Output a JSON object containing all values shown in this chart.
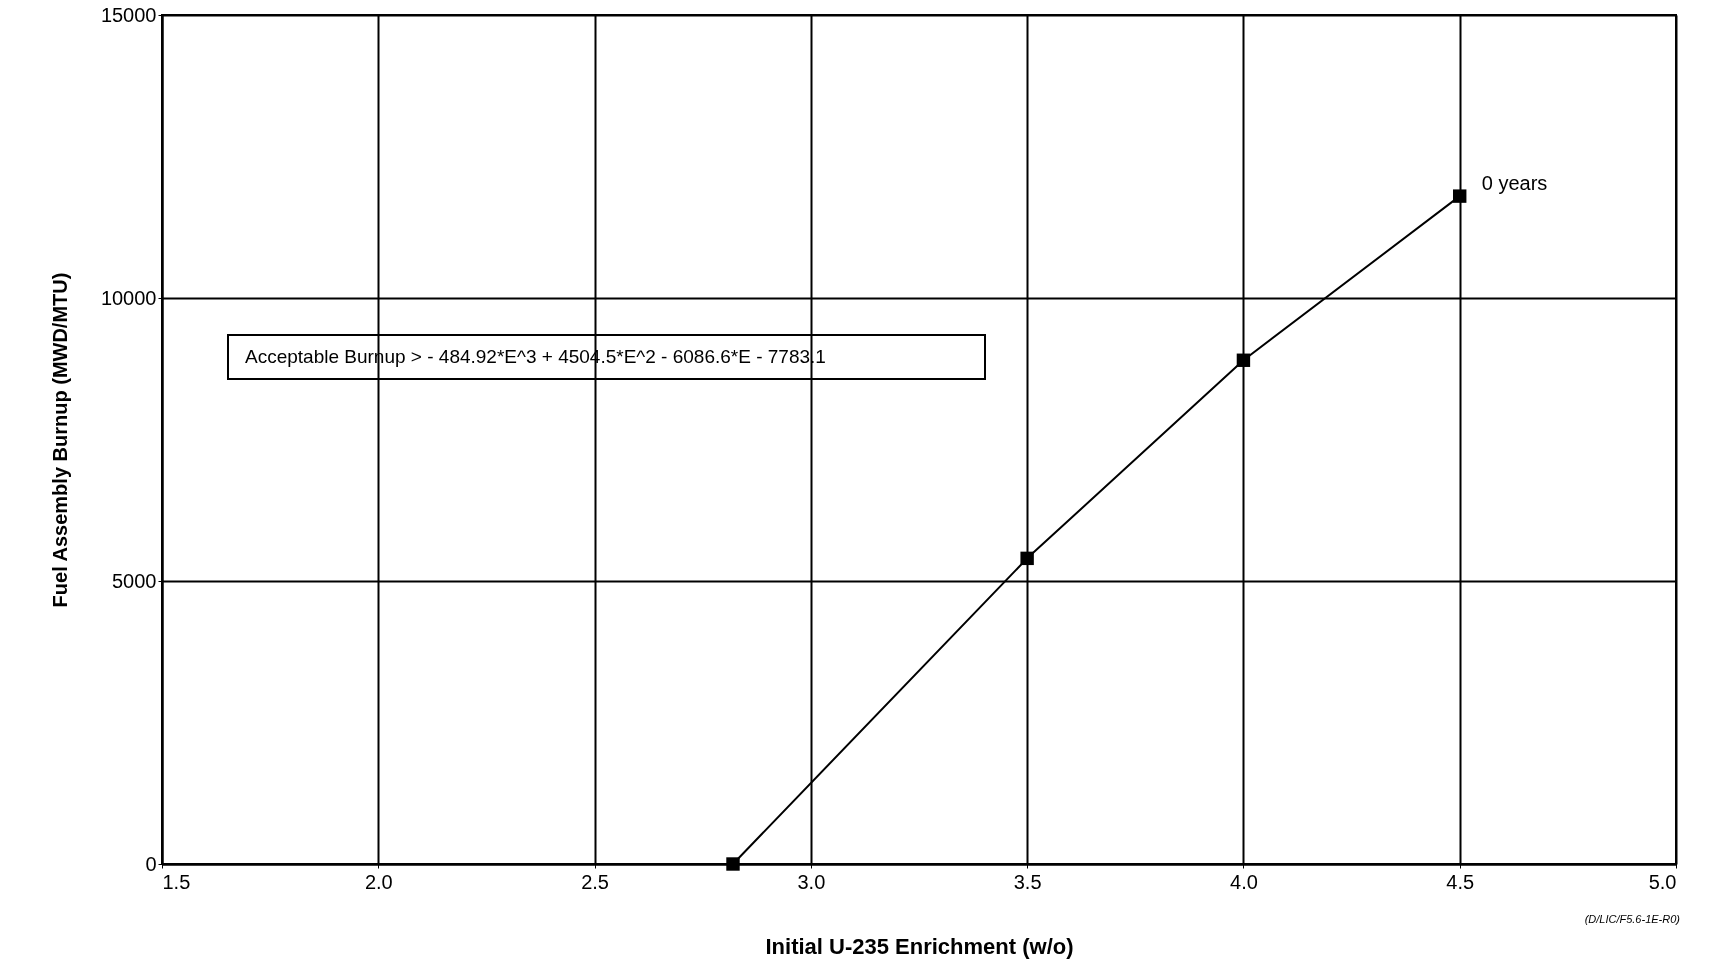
{
  "chart_data": {
    "type": "line",
    "xlabel": "Initial U-235 Enrichment (w/o)",
    "ylabel": "Fuel Assembly Burnup (MWD/MTU)",
    "x": [
      2.82,
      3.5,
      4.0,
      4.5
    ],
    "series": [
      {
        "color": "#000000",
        "values": [
          0,
          5400,
          8900,
          11800
        ]
      }
    ],
    "xlim": [
      1.5,
      5.0
    ],
    "xticks": [
      1.5,
      {
        "value": 2,
        "label": "2.0"
      },
      2.5,
      {
        "value": 3,
        "label": "3.0"
      },
      3.5,
      {
        "value": 4,
        "label": "4.0"
      },
      4.5,
      {
        "value": 5,
        "label": "5.0"
      }
    ],
    "ylim": [
      0,
      15000
    ],
    "yticks": [
      0,
      5000,
      10000,
      15000
    ],
    "grid": true,
    "marker": "square",
    "line_style": "solid",
    "annotations": [
      "Acceptable Burnup > - 484.92*E^3 + 4504.5*E^2 - 6086.6*E - 7783.1",
      {
        "text": "0 years",
        "x": 4.5,
        "y": 11800
      },
      "(D/LIC/F5.6-1E-R0)"
    ]
  }
}
